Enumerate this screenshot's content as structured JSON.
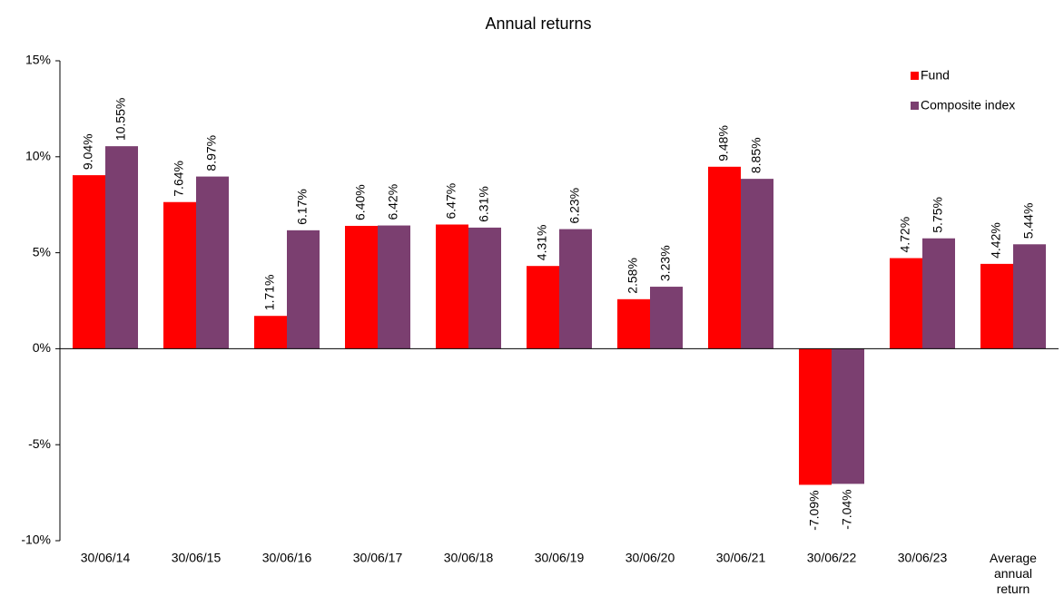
{
  "chart_data": {
    "type": "bar",
    "title": "Annual returns",
    "categories": [
      "30/06/14",
      "30/06/15",
      "30/06/16",
      "30/06/17",
      "30/06/18",
      "30/06/19",
      "30/06/20",
      "30/06/21",
      "30/06/22",
      "30/06/23",
      "Average annual return"
    ],
    "series": [
      {
        "name": "Fund",
        "color": "#ff0000",
        "values": [
          9.04,
          7.64,
          1.71,
          6.4,
          6.47,
          4.31,
          2.58,
          9.48,
          -7.09,
          4.72,
          4.42
        ],
        "value_labels": [
          "9.04%",
          "7.64%",
          "1.71%",
          "6.40%",
          "6.47%",
          "4.31%",
          "2.58%",
          "9.48%",
          "-7.09%",
          "4.72%",
          "4.42%"
        ]
      },
      {
        "name": "Composite index",
        "color": "#7b3f70",
        "values": [
          10.55,
          8.97,
          6.17,
          6.42,
          6.31,
          6.23,
          3.23,
          8.85,
          -7.04,
          5.75,
          5.44
        ],
        "value_labels": [
          "10.55%",
          "8.97%",
          "6.17%",
          "6.42%",
          "6.31%",
          "6.23%",
          "3.23%",
          "8.85%",
          "-7.04%",
          "5.75%",
          "5.44%"
        ]
      }
    ],
    "ylim": [
      -10,
      15
    ],
    "yticks": [
      {
        "value": -10,
        "label": "-10%"
      },
      {
        "value": -5,
        "label": "-5%"
      },
      {
        "value": 0,
        "label": "0%"
      },
      {
        "value": 5,
        "label": "5%"
      },
      {
        "value": 10,
        "label": "10%"
      },
      {
        "value": 15,
        "label": "15%"
      }
    ],
    "legend": "top-right"
  }
}
